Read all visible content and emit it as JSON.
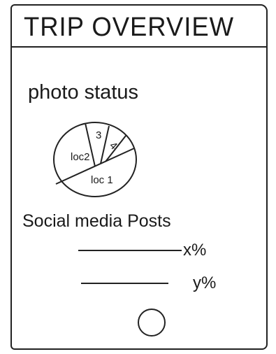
{
  "app": {
    "title": "TRIP OVERVIEW"
  },
  "photo_status": {
    "label": "photo status",
    "slices": [
      {
        "label": "loc 1"
      },
      {
        "label": "loc2"
      },
      {
        "label": "3"
      },
      {
        "label": "4"
      }
    ]
  },
  "social": {
    "label": "Social media Posts",
    "rows": [
      {
        "value": "x%"
      },
      {
        "value": "y%"
      }
    ]
  },
  "device": {
    "home_button_icon": "home-button-icon"
  },
  "colors": {
    "ink": "#222222",
    "paper": "#ffffff"
  }
}
